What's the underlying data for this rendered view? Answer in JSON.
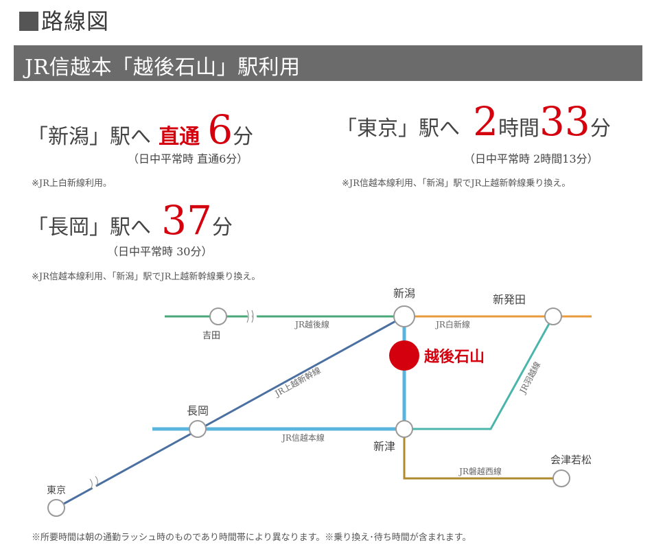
{
  "heading": "路線図",
  "banner": "JR信越本「越後石山」駅利用",
  "routes": {
    "niigata": {
      "dest": "「新潟」駅へ",
      "mode": "直通",
      "minutes": "6",
      "unit": "分",
      "sub": "（日中平常時 直通6分）",
      "note": "※JR上白新線利用。"
    },
    "tokyo": {
      "dest": "「東京」駅へ",
      "hours": "2",
      "hours_unit": "時間",
      "minutes": "33",
      "unit": "分",
      "sub": "（日中平常時 2時間13分）",
      "note": "※JR信越本線利用、「新潟」駅でJR上越新幹線乗り換え。"
    },
    "nagaoka": {
      "dest": "「長岡」駅へ",
      "minutes": "37",
      "unit": "分",
      "sub": "（日中平常時 30分）",
      "note": "※JR信越本線利用、「新潟」駅でJR上越新幹線乗り換え。"
    }
  },
  "map": {
    "stations": {
      "niigata": "新潟",
      "shibata": "新発田",
      "yoshida": "吉田",
      "echigo_ishiyama": "越後石山",
      "nagaoka": "長岡",
      "niitsu": "新津",
      "tokyo": "東京",
      "aizu": "会津若松"
    },
    "lines": {
      "echigo": "JR越後線",
      "hakushin": "JR白新線",
      "joetsu_shinkansen": "JR上越新幹線",
      "uetsu": "JR羽越線",
      "shinetsu": "JR信越本線",
      "banetsu": "JR磐越西線"
    },
    "colors": {
      "echigo": "#4aa77a",
      "hakushin": "#e89a3c",
      "joetsu_shinkansen": "#4a6fa0",
      "uetsu": "#4bb5ac",
      "shinetsu": "#5ab4dc",
      "banetsu": "#b08a2e",
      "highlight": "#d5000e"
    }
  },
  "footnote": "※所要時間は朝の通勤ラッシュ時のものであり時間帯により異なります。※乗り換え･待ち時間が含まれます。"
}
